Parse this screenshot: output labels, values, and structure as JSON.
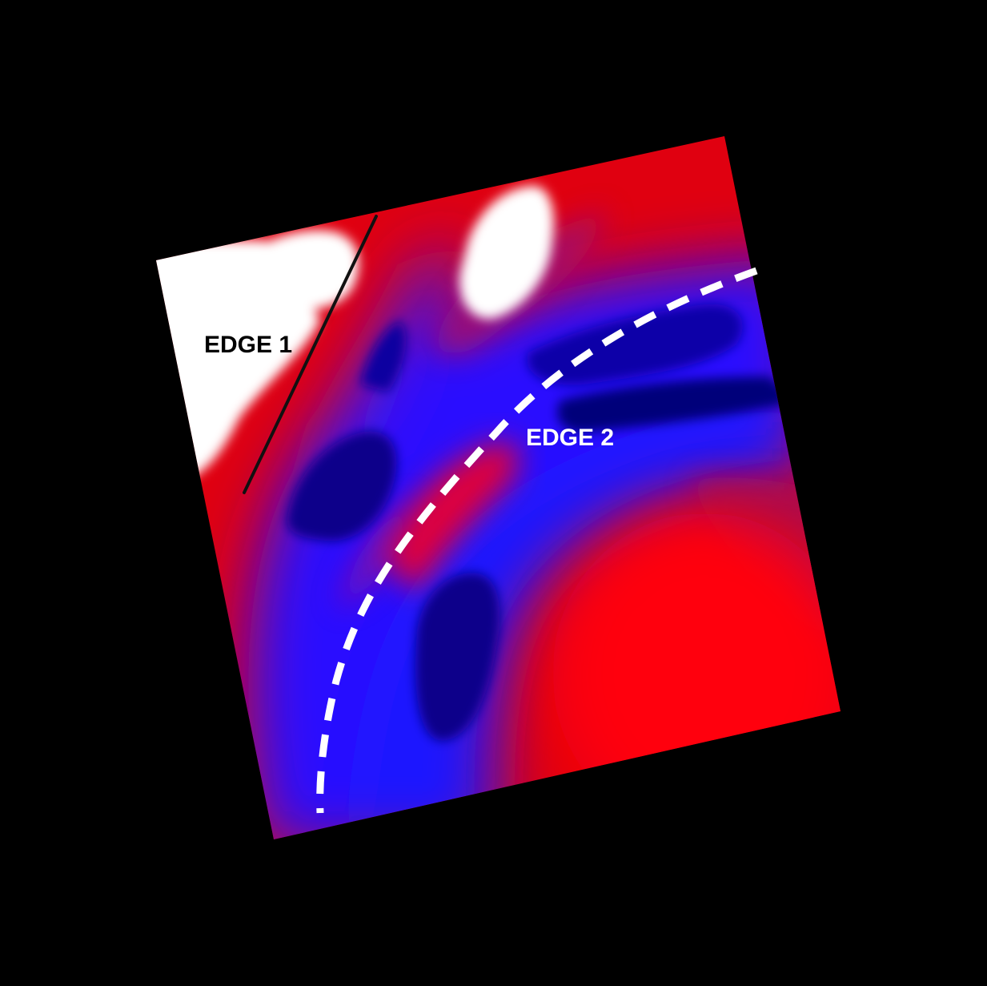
{
  "figure": {
    "background_color": "#000000",
    "map_colors": {
      "high": "#ff0000",
      "mid": "#8a0a6e",
      "low": "#1010ff",
      "deep": "#05047f",
      "saturated": "#ffffff"
    },
    "edge_1": {
      "label": "EDGE 1",
      "line_style": "solid",
      "line_color": "#111111",
      "label_color": "#000000"
    },
    "edge_2": {
      "label": "EDGE 2",
      "line_style": "dashed",
      "line_color": "#ffffff",
      "label_color": "#ffffff"
    }
  }
}
